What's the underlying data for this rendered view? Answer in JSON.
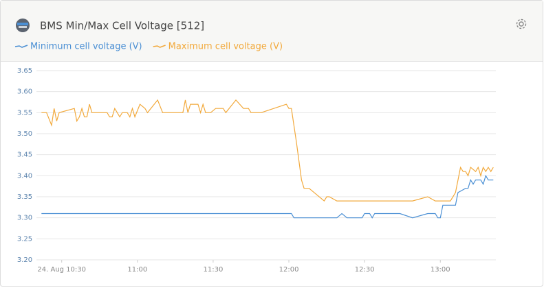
{
  "chart_data": {
    "type": "line",
    "title": "BMS Min/Max Cell Voltage [512]",
    "grid": true,
    "legend": "top-left",
    "xlim": [
      "10:20",
      "13:22"
    ],
    "xticks": [
      {
        "value": "10:30",
        "label": "24. Aug 10:30"
      },
      "11:00",
      "11:30",
      "12:00",
      "12:30",
      "13:00"
    ],
    "ylim": [
      3.2,
      3.65
    ],
    "yticks": [
      3.65,
      {
        "value": 3.6,
        "label": "3.60"
      },
      3.55,
      {
        "value": 3.5,
        "label": "3.50"
      },
      3.45,
      {
        "value": 3.4,
        "label": "3.40"
      },
      3.35,
      {
        "value": 3.3,
        "label": "3.30"
      },
      3.25,
      {
        "value": 3.2,
        "label": "3.20"
      }
    ],
    "series": [
      {
        "name": "Minimum cell voltage (V)",
        "color": "#4a8fd4",
        "x": [
          "10:22",
          "12:01",
          "12:02",
          "12:19",
          "12:21",
          "12:23",
          "12:29",
          "12:30",
          "12:32",
          "12:33",
          "12:34",
          "12:44",
          "12:49",
          "12:55",
          "12:58",
          "12:59",
          "13:00",
          "13:01",
          "13:06",
          "13:07",
          "13:10",
          "13:11",
          "13:12",
          "13:13",
          "13:14",
          "13:16",
          "13:17",
          "13:18",
          "13:19",
          "13:21"
        ],
        "values": [
          3.31,
          3.31,
          3.3,
          3.3,
          3.31,
          3.3,
          3.3,
          3.31,
          3.31,
          3.3,
          3.31,
          3.31,
          3.3,
          3.31,
          3.31,
          3.3,
          3.3,
          3.33,
          3.33,
          3.36,
          3.37,
          3.37,
          3.39,
          3.38,
          3.39,
          3.39,
          3.38,
          3.4,
          3.39,
          3.39
        ]
      },
      {
        "name": "Maximum cell voltage (V)",
        "color": "#f2a93b",
        "x": [
          "10:22",
          "10:24",
          "10:26",
          "10:27",
          "10:28",
          "10:29",
          "10:35",
          "10:36",
          "10:37",
          "10:38",
          "10:39",
          "10:40",
          "10:41",
          "10:42",
          "10:48",
          "10:49",
          "10:50",
          "10:51",
          "10:52",
          "10:53",
          "10:54",
          "10:56",
          "10:57",
          "10:58",
          "10:59",
          "11:01",
          "11:03",
          "11:04",
          "11:08",
          "11:10",
          "11:18",
          "11:19",
          "11:20",
          "11:21",
          "11:24",
          "11:25",
          "11:26",
          "11:27",
          "11:29",
          "11:31",
          "11:34",
          "11:35",
          "11:39",
          "11:42",
          "11:44",
          "11:45",
          "11:49",
          "11:59",
          "12:00",
          "12:01",
          "12:03",
          "12:05",
          "12:06",
          "12:08",
          "12:14",
          "12:15",
          "12:16",
          "12:19",
          "12:49",
          "12:55",
          "12:58",
          "13:04",
          "13:06",
          "13:08",
          "13:09",
          "13:10",
          "13:11",
          "13:12",
          "13:14",
          "13:15",
          "13:16",
          "13:17",
          "13:18",
          "13:19",
          "13:20",
          "13:21"
        ],
        "values": [
          3.55,
          3.55,
          3.52,
          3.56,
          3.53,
          3.55,
          3.56,
          3.53,
          3.54,
          3.56,
          3.54,
          3.54,
          3.57,
          3.55,
          3.55,
          3.54,
          3.54,
          3.56,
          3.55,
          3.54,
          3.55,
          3.55,
          3.54,
          3.56,
          3.54,
          3.57,
          3.56,
          3.55,
          3.58,
          3.55,
          3.55,
          3.58,
          3.55,
          3.57,
          3.57,
          3.55,
          3.57,
          3.55,
          3.55,
          3.56,
          3.56,
          3.55,
          3.58,
          3.56,
          3.56,
          3.55,
          3.55,
          3.57,
          3.56,
          3.56,
          3.48,
          3.39,
          3.37,
          3.37,
          3.34,
          3.35,
          3.35,
          3.34,
          3.34,
          3.35,
          3.34,
          3.34,
          3.36,
          3.42,
          3.41,
          3.41,
          3.4,
          3.42,
          3.41,
          3.42,
          3.4,
          3.42,
          3.41,
          3.42,
          3.41,
          3.42
        ]
      }
    ]
  }
}
